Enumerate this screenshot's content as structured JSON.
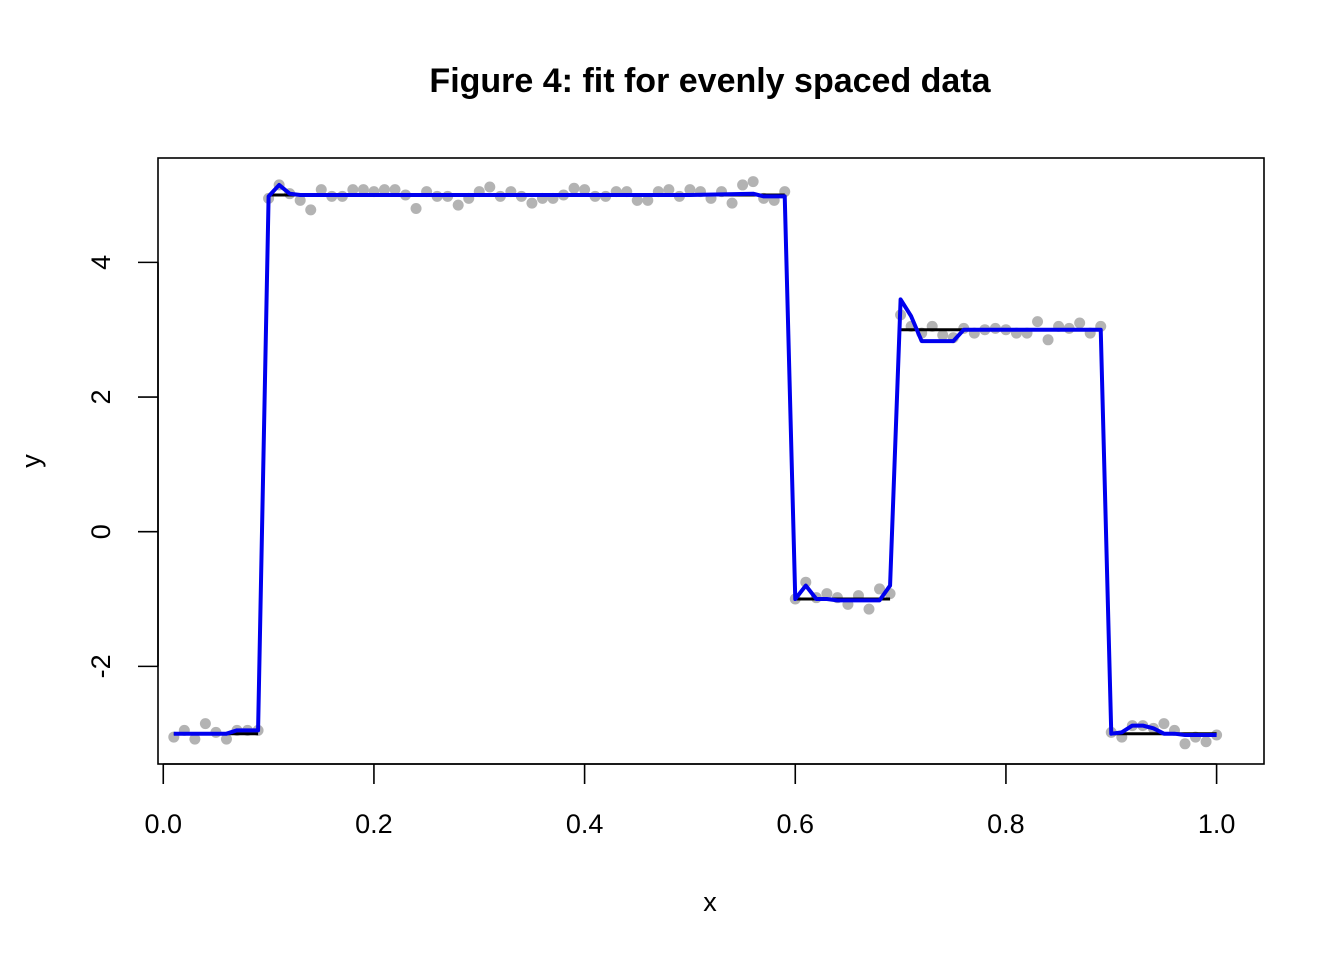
{
  "chart_data": {
    "type": "scatter",
    "title": "Figure 4: fit for evenly spaced data",
    "xlabel": "x",
    "ylabel": "y",
    "xlim": [
      -0.005,
      1.045
    ],
    "ylim": [
      -3.45,
      5.55
    ],
    "x_ticks": [
      0.0,
      0.2,
      0.4,
      0.6,
      0.8,
      1.0
    ],
    "x_tick_labels": [
      "0.0",
      "0.2",
      "0.4",
      "0.6",
      "0.8",
      "1.0"
    ],
    "y_ticks": [
      -2,
      0,
      2,
      4
    ],
    "y_tick_labels": [
      "-2",
      "0",
      "2",
      "4"
    ],
    "grid": false,
    "legend": "none",
    "series": [
      {
        "kind": "points",
        "color": "#b3b3b3",
        "x": [
          0.01,
          0.02,
          0.03,
          0.04,
          0.05,
          0.06,
          0.07,
          0.08,
          0.09,
          0.1,
          0.11,
          0.12,
          0.13,
          0.14,
          0.15,
          0.16,
          0.17,
          0.18,
          0.19,
          0.2,
          0.21,
          0.22,
          0.23,
          0.24,
          0.25,
          0.26,
          0.27,
          0.28,
          0.29,
          0.3,
          0.31,
          0.32,
          0.33,
          0.34,
          0.35,
          0.36,
          0.37,
          0.38,
          0.39,
          0.4,
          0.41,
          0.42,
          0.43,
          0.44,
          0.45,
          0.46,
          0.47,
          0.48,
          0.49,
          0.5,
          0.51,
          0.52,
          0.53,
          0.54,
          0.55,
          0.56,
          0.57,
          0.58,
          0.59,
          0.6,
          0.61,
          0.62,
          0.63,
          0.64,
          0.65,
          0.66,
          0.67,
          0.68,
          0.69,
          0.7,
          0.71,
          0.72,
          0.73,
          0.74,
          0.75,
          0.76,
          0.77,
          0.78,
          0.79,
          0.8,
          0.81,
          0.82,
          0.83,
          0.84,
          0.85,
          0.86,
          0.87,
          0.88,
          0.89,
          0.9,
          0.91,
          0.92,
          0.93,
          0.94,
          0.95,
          0.96,
          0.97,
          0.98,
          0.99,
          1.0
        ],
        "y": [
          -3.05,
          -2.95,
          -3.08,
          -2.85,
          -2.98,
          -3.08,
          -2.95,
          -2.95,
          -2.95,
          4.95,
          5.15,
          5.02,
          4.92,
          4.78,
          5.08,
          4.98,
          4.98,
          5.08,
          5.08,
          5.05,
          5.08,
          5.08,
          5.0,
          4.8,
          5.05,
          4.98,
          4.98,
          4.85,
          4.95,
          5.05,
          5.12,
          4.98,
          5.05,
          4.98,
          4.88,
          4.95,
          4.95,
          5.0,
          5.1,
          5.08,
          4.98,
          4.98,
          5.05,
          5.05,
          4.92,
          4.92,
          5.05,
          5.08,
          4.98,
          5.08,
          5.05,
          4.95,
          5.05,
          4.88,
          5.15,
          5.2,
          4.95,
          4.92,
          5.05,
          -1.0,
          -0.75,
          -0.98,
          -0.92,
          -0.98,
          -1.08,
          -0.95,
          -1.15,
          -0.85,
          -0.92,
          3.22,
          3.05,
          2.95,
          3.05,
          2.92,
          2.88,
          3.02,
          2.95,
          3.0,
          3.02,
          3.0,
          2.95,
          2.95,
          3.12,
          2.85,
          3.05,
          3.02,
          3.1,
          2.95,
          3.05,
          -2.98,
          -3.05,
          -2.88,
          -2.88,
          -2.92,
          -2.85,
          -2.95,
          -3.15,
          -3.05,
          -3.12,
          -3.02
        ]
      },
      {
        "kind": "segments",
        "color": "#000000",
        "segments": [
          {
            "x0": 0.01,
            "x1": 0.09,
            "y": -3
          },
          {
            "x0": 0.1,
            "x1": 0.59,
            "y": 5
          },
          {
            "x0": 0.6,
            "x1": 0.69,
            "y": -1
          },
          {
            "x0": 0.7,
            "x1": 0.89,
            "y": 3
          },
          {
            "x0": 0.9,
            "x1": 1.0,
            "y": -3
          }
        ]
      },
      {
        "kind": "line",
        "color": "#0000ee",
        "x": [
          0.01,
          0.02,
          0.03,
          0.04,
          0.05,
          0.06,
          0.07,
          0.08,
          0.09,
          0.1,
          0.11,
          0.12,
          0.13,
          0.4,
          0.5,
          0.56,
          0.57,
          0.58,
          0.59,
          0.6,
          0.61,
          0.62,
          0.63,
          0.64,
          0.65,
          0.66,
          0.67,
          0.68,
          0.69,
          0.7,
          0.71,
          0.72,
          0.73,
          0.74,
          0.75,
          0.76,
          0.77,
          0.8,
          0.85,
          0.89,
          0.9,
          0.91,
          0.92,
          0.93,
          0.94,
          0.95,
          0.96,
          0.97,
          1.0
        ],
        "y": [
          -3.0,
          -3.0,
          -3.0,
          -3.0,
          -3.0,
          -3.0,
          -2.95,
          -2.95,
          -2.95,
          4.98,
          5.15,
          5.02,
          5.0,
          5.0,
          5.0,
          5.02,
          4.98,
          4.98,
          4.98,
          -1.0,
          -0.8,
          -1.0,
          -1.0,
          -1.02,
          -1.02,
          -1.02,
          -1.02,
          -1.02,
          -0.8,
          3.45,
          3.2,
          2.83,
          2.83,
          2.83,
          2.83,
          3.0,
          3.0,
          3.0,
          3.0,
          3.0,
          -3.0,
          -2.98,
          -2.88,
          -2.88,
          -2.92,
          -3.0,
          -3.0,
          -3.02,
          -3.02
        ]
      }
    ]
  }
}
